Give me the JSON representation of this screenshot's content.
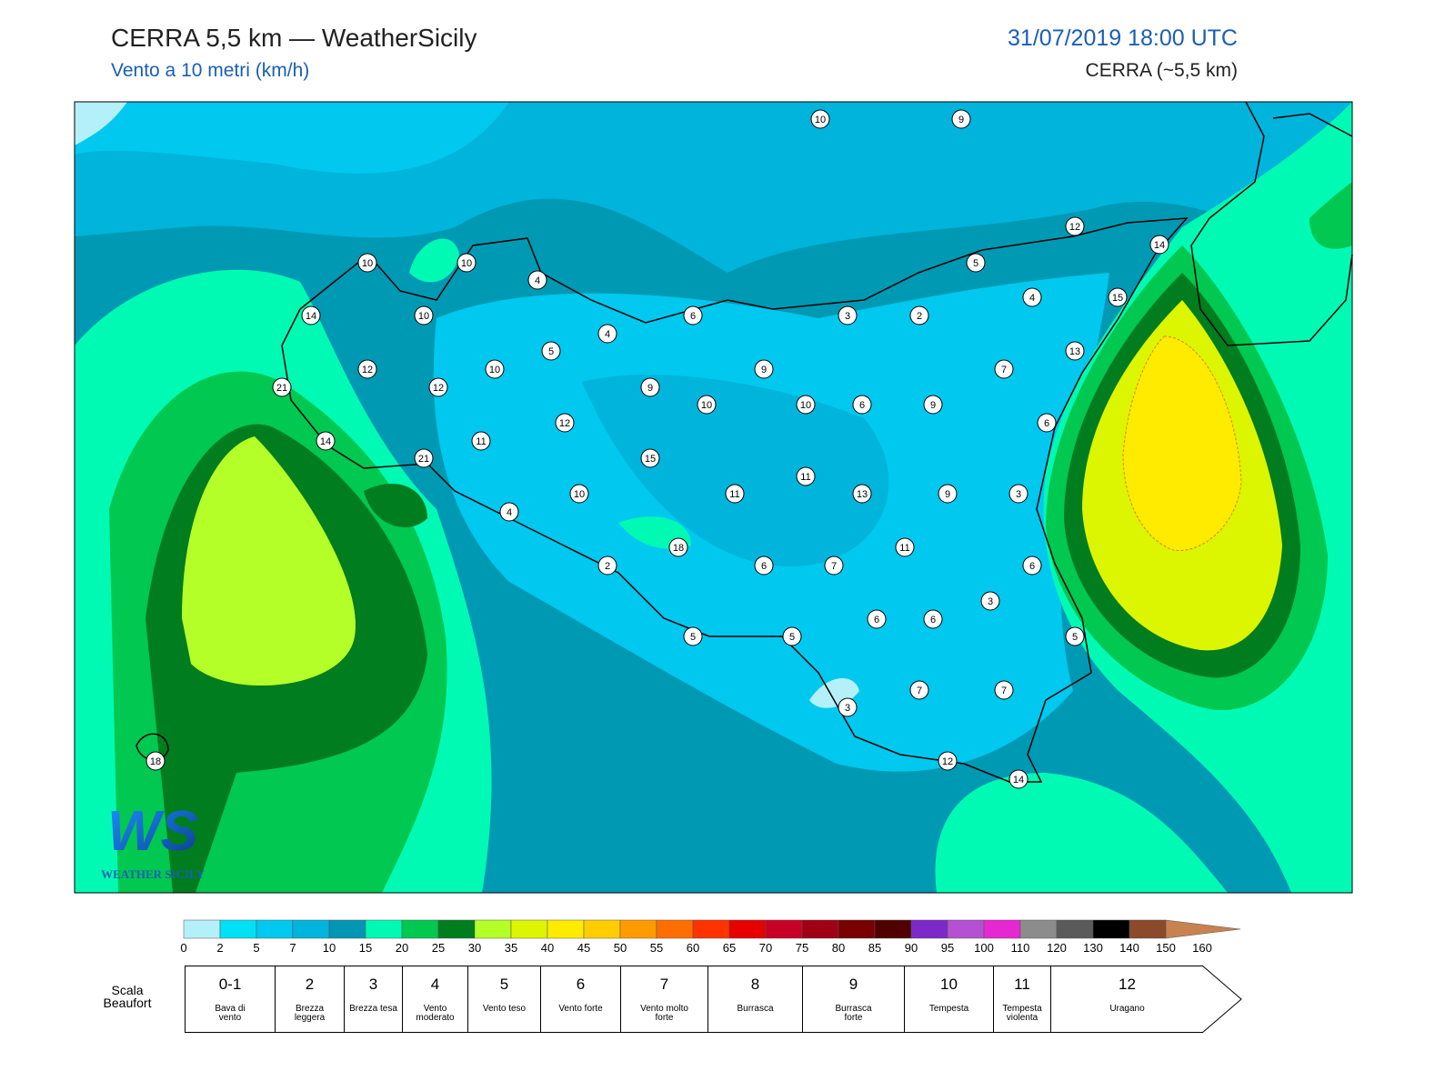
{
  "header": {
    "title": "CERRA 5,5 km — WeatherSicily",
    "subtitle": "Vento a 10 metri (km/h)",
    "datetime": "31/07/2019 18:00 UTC",
    "model": "CERRA (~5,5 km)"
  },
  "map": {
    "station_values": [
      10,
      9,
      12,
      14,
      10,
      10,
      5,
      4,
      4,
      15,
      14,
      10,
      6,
      3,
      2,
      4,
      5,
      13,
      12,
      10,
      9,
      7,
      21,
      12,
      9,
      10,
      10,
      6,
      9,
      12,
      6,
      14,
      11,
      21,
      15,
      11,
      10,
      11,
      13,
      9,
      3,
      4,
      18,
      11,
      2,
      6,
      7,
      6,
      3,
      6,
      6,
      5,
      5,
      5,
      7,
      7,
      3,
      18,
      12,
      14
    ]
  },
  "logo": {
    "mark": "WS",
    "name": "WEATHER SICILY"
  },
  "color_scale": {
    "ticks": [
      0,
      2,
      5,
      7,
      10,
      15,
      20,
      25,
      30,
      35,
      40,
      45,
      50,
      55,
      60,
      65,
      70,
      75,
      80,
      85,
      90,
      95,
      100,
      110,
      120,
      130,
      140,
      150,
      160
    ],
    "colors": [
      "#b4f0fa",
      "#00e1f5",
      "#00c8ef",
      "#00b4dc",
      "#0096b4",
      "#00fab4",
      "#00c850",
      "#007d1e",
      "#b4ff28",
      "#dcf500",
      "#ffeb00",
      "#ffcd00",
      "#ff9b00",
      "#ff6e00",
      "#ff3200",
      "#e60000",
      "#c80028",
      "#a00014",
      "#780000",
      "#500000",
      "#7d28c8",
      "#b450d2",
      "#e628d2",
      "#8c8c8c",
      "#5a5a5a",
      "#000000",
      "#8b4a2b",
      "#c88250"
    ]
  },
  "beaufort": {
    "label": "Scala Beaufort",
    "levels": [
      {
        "force": "0-1",
        "description": "Bava di vento"
      },
      {
        "force": "2",
        "description": "Brezza leggera"
      },
      {
        "force": "3",
        "description": "Brezza tesa"
      },
      {
        "force": "4",
        "description": "Vento moderato"
      },
      {
        "force": "5",
        "description": "Vento teso"
      },
      {
        "force": "6",
        "description": "Vento forte"
      },
      {
        "force": "7",
        "description": "Vento molto forte"
      },
      {
        "force": "8",
        "description": "Burrasca"
      },
      {
        "force": "9",
        "description": "Burrasca forte"
      },
      {
        "force": "10",
        "description": "Tempesta"
      },
      {
        "force": "11",
        "description": "Tempesta violenta"
      },
      {
        "force": "12",
        "description": "Uragano"
      }
    ]
  }
}
